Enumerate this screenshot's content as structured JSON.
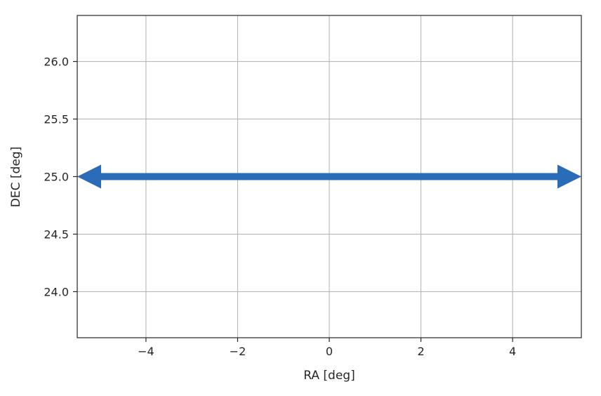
{
  "chart_data": {
    "type": "line",
    "xlabel": "RA [deg]",
    "ylabel": "DEC [deg]",
    "xlim": [
      -5.5,
      5.5
    ],
    "ylim": [
      23.6,
      26.4
    ],
    "xticks": [
      -4,
      -2,
      0,
      2,
      4
    ],
    "xtick_labels": [
      "−4",
      "−2",
      "0",
      "2",
      "4"
    ],
    "yticks": [
      24.0,
      24.5,
      25.0,
      25.5,
      26.0
    ],
    "ytick_labels": [
      "24.0",
      "24.5",
      "25.0",
      "25.5",
      "26.0"
    ],
    "grid": true,
    "series": [
      {
        "style": "double-headed-arrow",
        "color": "#2b6cb8",
        "x": [
          -5.5,
          5.5
        ],
        "y": [
          25.0,
          25.0
        ]
      }
    ]
  }
}
